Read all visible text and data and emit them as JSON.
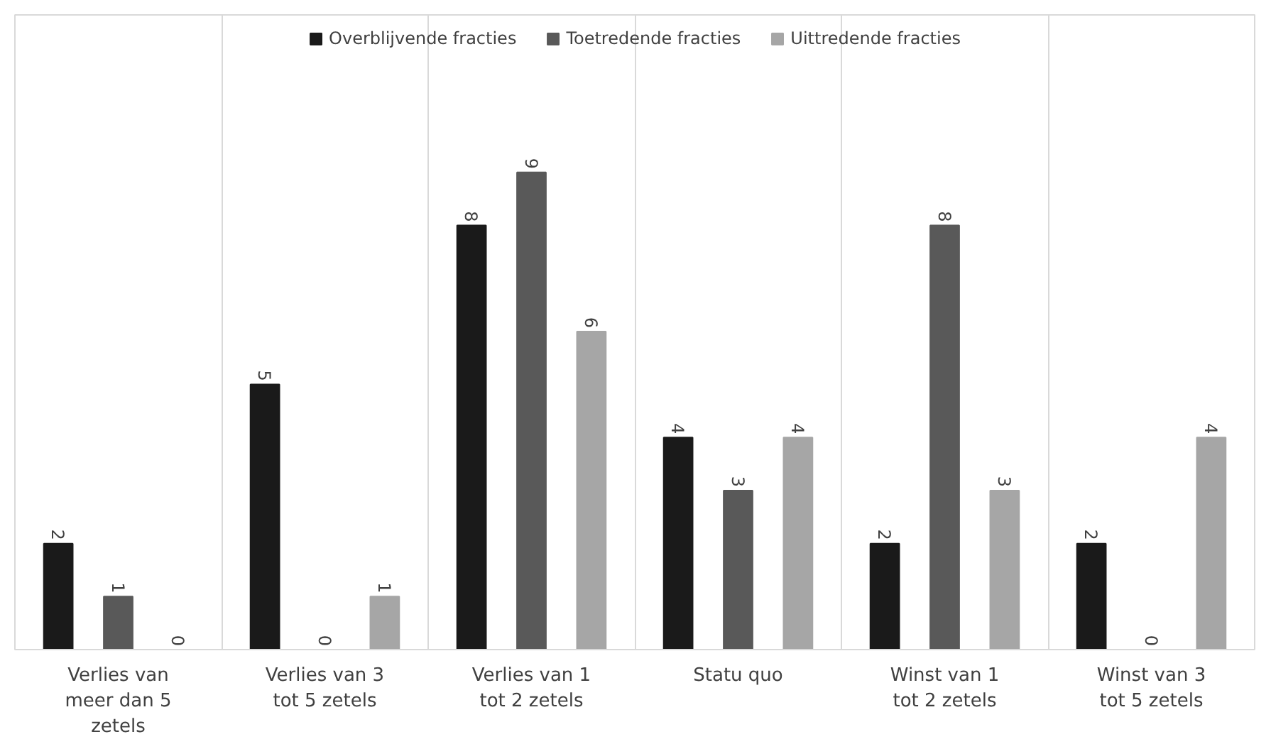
{
  "chart_data": {
    "type": "bar",
    "categories": [
      "Verlies van meer dan 5 zetels",
      "Verlies van 3 tot 5 zetels",
      "Verlies van 1 tot 2 zetels",
      "Statu quo",
      "Winst van 1 tot 2 zetels",
      "Winst van 3 tot 5 zetels"
    ],
    "series": [
      {
        "name": "Overblijvende fracties",
        "color": "#1a1a1a",
        "values": [
          2,
          5,
          8,
          4,
          2,
          2
        ]
      },
      {
        "name": "Toetredende fracties",
        "color": "#595959",
        "values": [
          1,
          0,
          9,
          3,
          8,
          0
        ]
      },
      {
        "name": "Uittredende fracties",
        "color": "#a6a6a6",
        "values": [
          0,
          1,
          6,
          4,
          3,
          4
        ]
      }
    ],
    "data_labels": true,
    "grid": "x",
    "legend": "top"
  }
}
